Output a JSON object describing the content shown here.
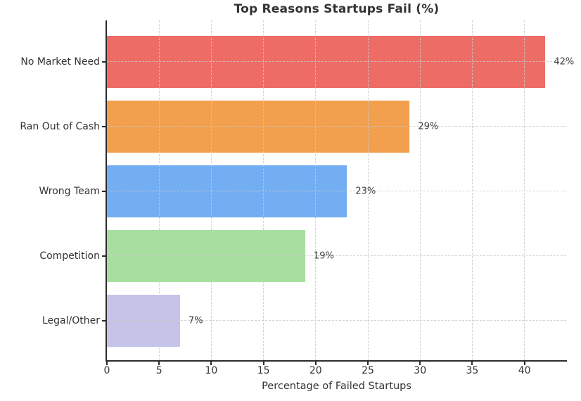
{
  "chart_data": {
    "type": "bar",
    "orientation": "horizontal",
    "title": "Top Reasons Startups Fail (%)",
    "xlabel": "Percentage of Failed Startups",
    "ylabel": "",
    "categories": [
      "No Market Need",
      "Ran Out of Cash",
      "Wrong Team",
      "Competition",
      "Legal/Other"
    ],
    "values": [
      42,
      29,
      23,
      19,
      7
    ],
    "value_labels": [
      "42%",
      "29%",
      "23%",
      "19%",
      "7%"
    ],
    "bar_colors": [
      "#ed6d66",
      "#f2a04d",
      "#74aef2",
      "#a8dfa1",
      "#c5c3e8"
    ],
    "xlim": [
      0,
      44
    ],
    "xticks": [
      0,
      5,
      10,
      15,
      20,
      25,
      30,
      35,
      40
    ],
    "grid": "dashed-both-axes",
    "legend": "none",
    "spine_color": "#2b2b2b",
    "grid_color": "#c9c9c9",
    "text_color": "#333333"
  }
}
